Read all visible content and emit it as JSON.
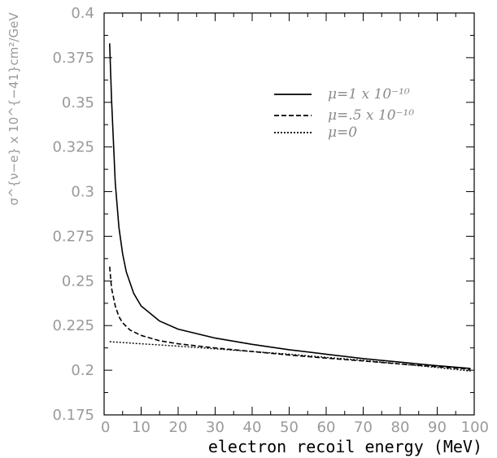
{
  "chart_data": {
    "type": "line",
    "xlabel": "electron recoil energy (MeV)",
    "ylabel": "σ^{ν−e} x 10^{−41}cm²/GeV",
    "xlim": [
      0,
      100
    ],
    "ylim": [
      0.175,
      0.4
    ],
    "x_ticks": [
      "0",
      "10",
      "20",
      "30",
      "40",
      "50",
      "60",
      "70",
      "80",
      "90",
      "100"
    ],
    "y_ticks": [
      "0.175",
      "0.2",
      "0.225",
      "0.25",
      "0.275",
      "0.3",
      "0.325",
      "0.35",
      "0.375",
      "0.4"
    ],
    "legend_position": "top-right",
    "series": [
      {
        "name": "μ=1 x 10⁻¹⁰",
        "style": "solid",
        "x": [
          1.5,
          2,
          3,
          4,
          5,
          6,
          8,
          10,
          15,
          20,
          30,
          40,
          50,
          60,
          70,
          80,
          90,
          99
        ],
        "y": [
          0.383,
          0.352,
          0.305,
          0.28,
          0.265,
          0.255,
          0.243,
          0.236,
          0.2275,
          0.223,
          0.218,
          0.2145,
          0.2115,
          0.209,
          0.2065,
          0.2045,
          0.2025,
          0.201
        ]
      },
      {
        "name": "μ=.5 x 10⁻¹⁰",
        "style": "dashed",
        "x": [
          1.5,
          2,
          3,
          4,
          5,
          7,
          10,
          15,
          20,
          30,
          40,
          50,
          60,
          70,
          80,
          90,
          99
        ],
        "y": [
          0.258,
          0.246,
          0.236,
          0.23,
          0.2265,
          0.2225,
          0.2195,
          0.2165,
          0.2148,
          0.2125,
          0.2105,
          0.2085,
          0.2068,
          0.2052,
          0.2035,
          0.202,
          0.2005
        ]
      },
      {
        "name": "μ=0",
        "style": "dotted",
        "x": [
          1.5,
          10,
          20,
          30,
          40,
          50,
          60,
          70,
          80,
          90,
          99
        ],
        "y": [
          0.216,
          0.2148,
          0.2135,
          0.212,
          0.2105,
          0.209,
          0.2072,
          0.2055,
          0.2035,
          0.2015,
          0.1995
        ]
      }
    ]
  }
}
